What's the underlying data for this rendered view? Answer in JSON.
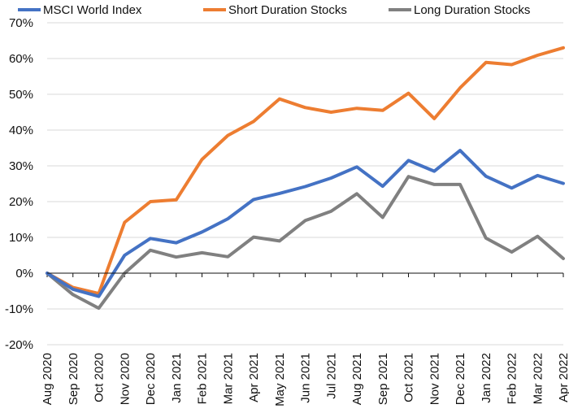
{
  "chart_data": {
    "type": "line",
    "title": "",
    "xlabel": "",
    "ylabel": "",
    "ylim": [
      -20,
      70
    ],
    "yticks": [
      -20,
      -10,
      0,
      10,
      20,
      30,
      40,
      50,
      60,
      70
    ],
    "ytick_labels": [
      "-20%",
      "-10%",
      "0%",
      "10%",
      "20%",
      "30%",
      "40%",
      "50%",
      "60%",
      "70%"
    ],
    "grid": true,
    "legend_position": "top",
    "categories": [
      "Aug 2020",
      "Sep 2020",
      "Oct 2020",
      "Nov 2020",
      "Dec 2020",
      "Jan 2021",
      "Feb 2021",
      "Mar 2021",
      "Apr 2021",
      "May 2021",
      "Jun 2021",
      "Jul 2021",
      "Aug 2021",
      "Sep 2021",
      "Oct 2021",
      "Nov 2021",
      "Dec 2021",
      "Jan 2022",
      "Feb 2022",
      "Mar 2022",
      "Apr 2022"
    ],
    "series": [
      {
        "name": "MSCI World Index",
        "color": "#4472c4",
        "values": [
          0,
          -4.5,
          -6.5,
          5,
          9.7,
          8.5,
          11.5,
          15.2,
          20.6,
          22.3,
          24.2,
          26.6,
          29.7,
          24.3,
          31.5,
          28.5,
          34.3,
          27.1,
          23.8,
          27.3,
          25.1
        ]
      },
      {
        "name": "Short Duration Stocks",
        "color": "#ed7d31",
        "values": [
          0,
          -4,
          -5.7,
          14.2,
          20,
          20.5,
          31.8,
          38.5,
          42.4,
          48.7,
          46.3,
          45,
          46.1,
          45.5,
          50.3,
          43.2,
          51.8,
          58.9,
          58.3,
          60.9,
          63
        ]
      },
      {
        "name": "Long Duration Stocks",
        "color": "#808080",
        "values": [
          0,
          -6,
          -9.8,
          0,
          6.4,
          4.5,
          5.7,
          4.6,
          10.1,
          9,
          14.7,
          17.3,
          22.2,
          15.6,
          27,
          24.8,
          24.8,
          9.8,
          5.9,
          10.3,
          4.1
        ]
      }
    ]
  }
}
